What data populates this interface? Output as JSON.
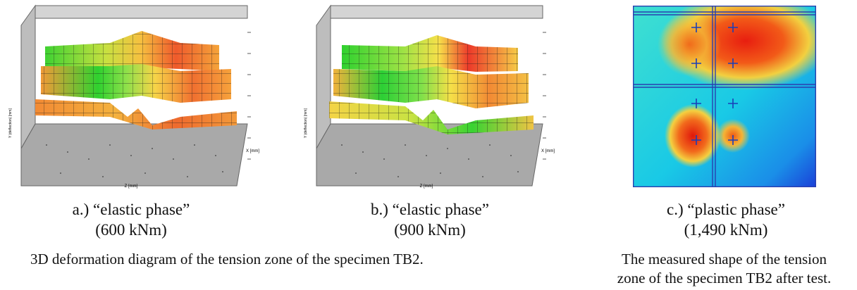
{
  "figures": [
    {
      "id": "a",
      "axis_z": "Z [mm]",
      "axis_x": "X [mm]",
      "axis_y": "Y (deflection) [mm]",
      "caption_line1": "a.) “elastic phase”",
      "caption_line2": "(600 kNm)"
    },
    {
      "id": "b",
      "axis_z": "Z [mm]",
      "axis_x": "X [mm]",
      "axis_y": "Y (deflection) [mm]",
      "caption_line1": "b.) “elastic phase”",
      "caption_line2": "(900 kNm)"
    },
    {
      "id": "c",
      "caption_line1": "c.) “plastic phase”",
      "caption_line2": "(1,490 kNm)"
    }
  ],
  "notes": {
    "left": "3D deformation diagram of the tension zone of the specimen TB2.",
    "right_line1": "The measured shape of the tension",
    "right_line2": "zone of the specimen TB2 after test."
  },
  "colors": {
    "surface_green": "#2fd12f",
    "surface_yellow": "#f0e24a",
    "surface_orange": "#f4a43a",
    "surface_red": "#e8332a",
    "floor_grey": "#a9a9a9",
    "map_cyan": "#19c9e6",
    "map_blue": "#1a4fe0",
    "map_red": "#e81e10",
    "bolt_marker": "#1a3fb8"
  }
}
